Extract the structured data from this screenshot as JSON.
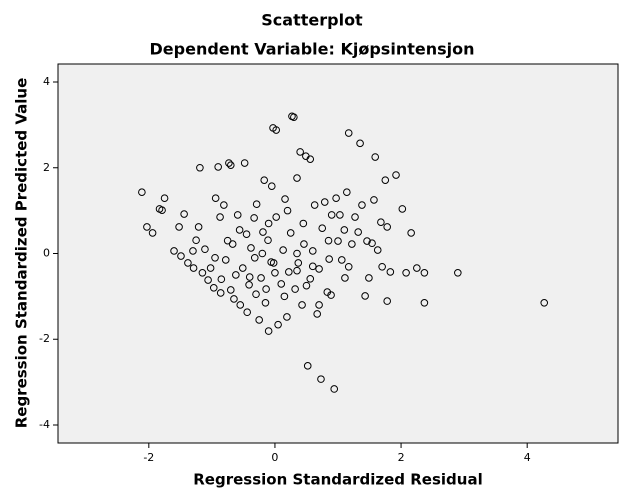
{
  "chart_data": {
    "type": "scatter",
    "title": "Scatterplot",
    "subtitle": "Dependent Variable: Kjøpsintensjon",
    "x_label": "Regression Standardized Residual",
    "y_label": "Regression Standardized Predicted Value",
    "xlim": [
      -3.44,
      5.44
    ],
    "ylim": [
      -4.42,
      4.42
    ],
    "xticks": [
      -2,
      0,
      2,
      4
    ],
    "yticks": [
      -4,
      -2,
      0,
      2,
      4
    ],
    "marker_color": "#000000",
    "background": "#f0f0f0",
    "x": [
      -2.11,
      -2.03,
      -1.94,
      -1.83,
      -1.79,
      -1.75,
      -1.6,
      -1.49,
      -1.44,
      -1.38,
      -1.29,
      -1.25,
      -1.21,
      -1.19,
      -1.11,
      -1.06,
      -1.02,
      -0.97,
      -0.94,
      -0.9,
      -0.87,
      -0.86,
      -0.81,
      -0.78,
      -0.73,
      -0.7,
      -0.67,
      -0.65,
      -0.62,
      -0.59,
      -0.56,
      -0.51,
      -0.48,
      -0.44,
      -0.41,
      -0.38,
      -0.33,
      -0.32,
      -0.29,
      -0.25,
      -0.22,
      -0.19,
      -0.17,
      -0.14,
      -0.11,
      -0.1,
      -0.06,
      -0.05,
      -0.03,
      0.02,
      -0.02,
      0.02,
      0.05,
      0.1,
      0.13,
      0.16,
      0.19,
      0.22,
      0.25,
      0.27,
      0.3,
      0.32,
      0.35,
      0.37,
      0.4,
      0.43,
      0.46,
      0.49,
      0.56,
      0.52,
      0.56,
      0.6,
      0.63,
      0.67,
      0.7,
      0.73,
      0.75,
      0.79,
      0.83,
      0.86,
      0.89,
      0.9,
      0.94,
      0.97,
      1.0,
      1.03,
      1.06,
      1.11,
      1.14,
      1.17,
      1.17,
      1.22,
      1.27,
      1.32,
      1.35,
      1.38,
      1.43,
      1.46,
      1.49,
      1.54,
      1.57,
      1.59,
      1.63,
      1.68,
      1.7,
      1.75,
      1.78,
      1.78,
      1.83,
      1.92,
      2.02,
      2.08,
      2.16,
      2.25,
      2.37,
      2.37,
      2.9,
      4.27,
      -1.52,
      -1.3,
      -1.15,
      -0.95,
      -0.85,
      -0.7,
      -0.55,
      -0.4,
      -0.3,
      -0.15,
      0.0,
      0.15,
      0.35,
      0.5,
      0.6,
      0.45,
      0.2,
      -0.1,
      -0.45,
      -0.75,
      0.7,
      0.85,
      1.1,
      0.35,
      -0.2
    ],
    "y": [
      1.43,
      0.62,
      0.48,
      1.04,
      1.01,
      1.29,
      0.06,
      -0.06,
      0.92,
      -0.22,
      -0.34,
      0.31,
      0.62,
      2.0,
      0.1,
      -0.62,
      -0.34,
      -0.8,
      1.29,
      2.02,
      0.85,
      -0.92,
      1.13,
      -0.15,
      2.11,
      2.06,
      0.22,
      -1.06,
      -0.5,
      0.9,
      0.55,
      -0.34,
      2.11,
      -1.37,
      -0.73,
      0.13,
      0.83,
      -0.1,
      1.15,
      -1.55,
      -0.57,
      0.5,
      1.71,
      -0.83,
      0.31,
      -1.81,
      -0.2,
      1.57,
      2.93,
      2.88,
      -0.22,
      0.85,
      -1.66,
      -0.71,
      0.08,
      1.27,
      -1.48,
      -0.43,
      0.48,
      3.2,
      3.18,
      -0.83,
      1.76,
      -0.22,
      2.37,
      -1.2,
      0.22,
      2.27,
      2.2,
      -2.62,
      -0.59,
      0.06,
      1.13,
      -1.41,
      -0.36,
      -2.93,
      0.59,
      1.2,
      -0.9,
      -0.13,
      -0.97,
      0.9,
      -3.16,
      1.29,
      0.29,
      0.9,
      -0.15,
      -0.57,
      1.43,
      -0.31,
      2.81,
      0.22,
      0.85,
      0.5,
      2.57,
      1.13,
      -0.99,
      0.29,
      -0.57,
      0.24,
      1.25,
      2.25,
      0.08,
      0.73,
      -0.31,
      1.71,
      0.62,
      -1.11,
      -0.43,
      1.83,
      1.04,
      -0.45,
      0.48,
      -0.34,
      -0.45,
      -1.15,
      -0.45,
      -1.15,
      0.62,
      0.06,
      -0.45,
      -0.1,
      -0.6,
      -0.85,
      -1.2,
      -0.55,
      -0.95,
      -1.15,
      -0.45,
      -1.0,
      -0.4,
      -0.75,
      -0.3,
      0.7,
      1.0,
      0.7,
      0.45,
      0.3,
      -1.2,
      0.3,
      0.55,
      0.0,
      0.0
    ]
  }
}
